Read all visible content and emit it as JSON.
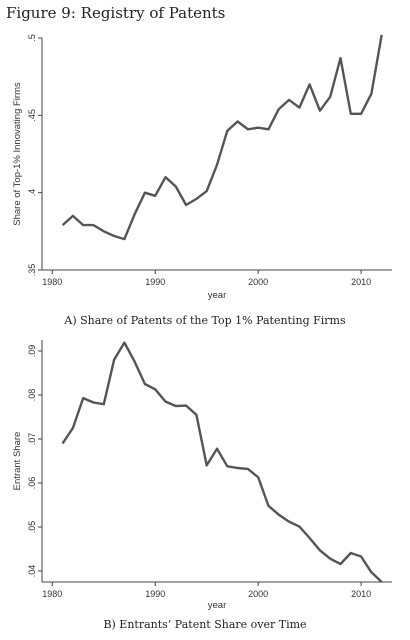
{
  "figure": {
    "title": "Figure 9: Registry of Patents"
  },
  "chart_data": [
    {
      "type": "line",
      "caption": "A) Share of Patents of the Top 1% Patenting Firms",
      "xlabel": "year",
      "ylabel": "Share of Top-1% Innovating Firms",
      "xlim": [
        1979,
        2013
      ],
      "ylim": [
        0.35,
        0.5
      ],
      "xticks": [
        1980,
        1990,
        2000,
        2010
      ],
      "xtick_labels": [
        "1980",
        "1990",
        "2000",
        "2010"
      ],
      "yticks": [
        0.35,
        0.4,
        0.45,
        0.5
      ],
      "ytick_labels": [
        ".35",
        ".4",
        ".45",
        ".5"
      ],
      "grid": false,
      "line_color": "#555555",
      "series": [
        {
          "x": [
            1981,
            1982,
            1983,
            1984,
            1985,
            1986,
            1987,
            1988,
            1989,
            1990,
            1991,
            1992,
            1993,
            1994,
            1995,
            1996,
            1997,
            1998,
            1999,
            2000,
            2001,
            2002,
            2003,
            2004,
            2005,
            2006,
            2007,
            2008,
            2009,
            2010,
            2011,
            2012
          ],
          "values": [
            0.379,
            0.385,
            0.379,
            0.379,
            0.375,
            0.372,
            0.37,
            0.386,
            0.4,
            0.398,
            0.41,
            0.404,
            0.392,
            0.396,
            0.401,
            0.418,
            0.44,
            0.446,
            0.441,
            0.442,
            0.441,
            0.454,
            0.46,
            0.455,
            0.47,
            0.453,
            0.462,
            0.487,
            0.451,
            0.451,
            0.464,
            0.502
          ]
        }
      ]
    },
    {
      "type": "line",
      "caption": "B) Entrants’ Patent Share over Time",
      "xlabel": "year",
      "ylabel": "Entrant Share",
      "xlim": [
        1979,
        2013
      ],
      "ylim": [
        0.0375,
        0.0925
      ],
      "xticks": [
        1980,
        1990,
        2000,
        2010
      ],
      "xtick_labels": [
        "1980",
        "1990",
        "2000",
        "2010"
      ],
      "yticks": [
        0.04,
        0.05,
        0.06,
        0.07,
        0.08,
        0.09
      ],
      "ytick_labels": [
        ".04",
        ".05",
        ".06",
        ".07",
        ".08",
        ".09"
      ],
      "grid": false,
      "line_color": "#555555",
      "series": [
        {
          "x": [
            1981,
            1982,
            1983,
            1984,
            1985,
            1986,
            1987,
            1988,
            1989,
            1990,
            1991,
            1992,
            1993,
            1994,
            1995,
            1996,
            1997,
            1998,
            1999,
            2000,
            2001,
            2002,
            2003,
            2004,
            2005,
            2006,
            2007,
            2008,
            2009,
            2010,
            2011,
            2012
          ],
          "values": [
            0.069,
            0.0725,
            0.0793,
            0.0783,
            0.0779,
            0.088,
            0.0919,
            0.0876,
            0.0825,
            0.0813,
            0.0785,
            0.0775,
            0.0776,
            0.0755,
            0.064,
            0.0678,
            0.0638,
            0.0634,
            0.0632,
            0.0613,
            0.0548,
            0.0528,
            0.0512,
            0.0501,
            0.0475,
            0.0447,
            0.0428,
            0.0416,
            0.0441,
            0.0433,
            0.0397,
            0.0375
          ]
        }
      ]
    }
  ]
}
